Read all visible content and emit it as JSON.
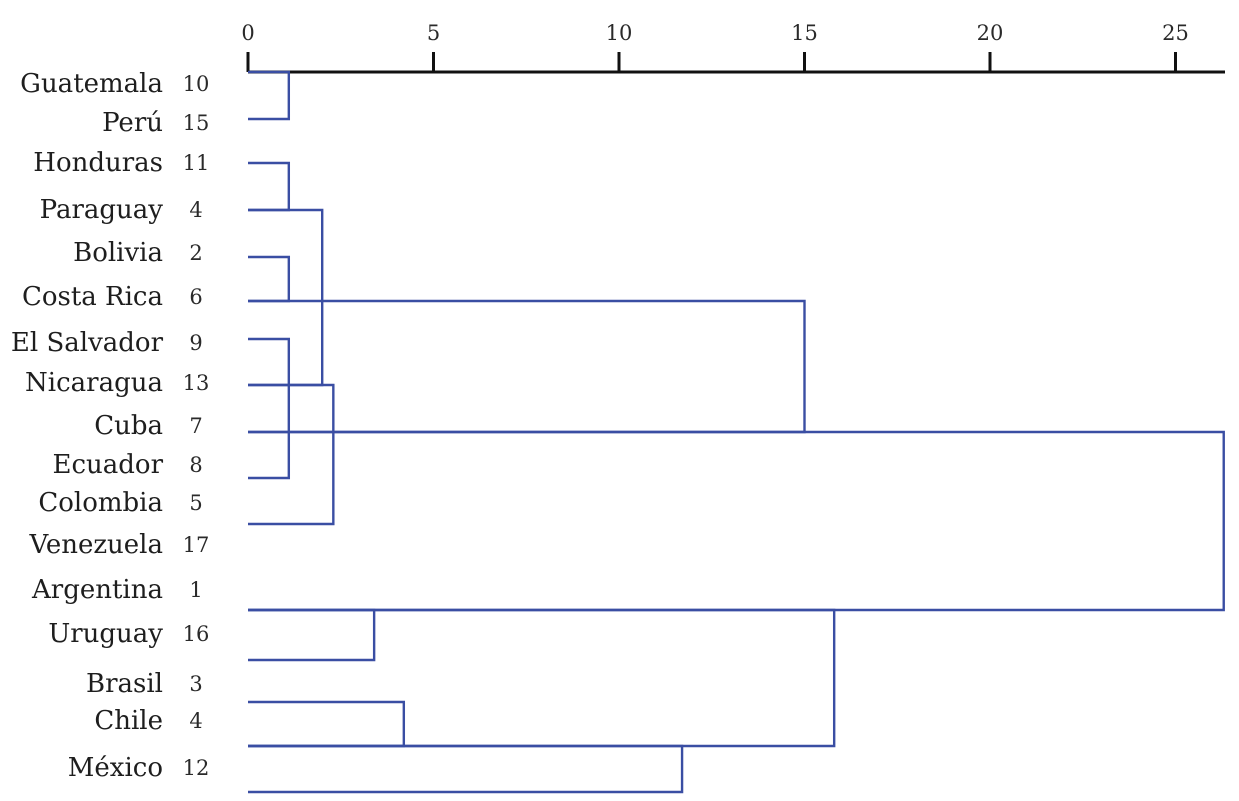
{
  "chart_data": {
    "type": "dendrogram",
    "x_ticks": [
      "0",
      "5",
      "10",
      "15",
      "20",
      "25"
    ],
    "xlim": [
      0,
      26.3
    ],
    "leaves": [
      {
        "name": "Guatemala",
        "id": "10"
      },
      {
        "name": "Perú",
        "id": "15"
      },
      {
        "name": "Honduras",
        "id": "11"
      },
      {
        "name": "Paraguay",
        "id": "4"
      },
      {
        "name": "Bolivia",
        "id": "2"
      },
      {
        "name": "Costa Rica",
        "id": "6"
      },
      {
        "name": "El Salvador",
        "id": "9"
      },
      {
        "name": "Nicaragua",
        "id": "13"
      },
      {
        "name": "Cuba",
        "id": "7"
      },
      {
        "name": "Ecuador",
        "id": "8"
      },
      {
        "name": "Colombia",
        "id": "5"
      },
      {
        "name": "Venezuela",
        "id": "17"
      },
      {
        "name": "Argentina",
        "id": "1"
      },
      {
        "name": "Uruguay",
        "id": "16"
      },
      {
        "name": "Brasil",
        "id": "3"
      },
      {
        "name": "Chile",
        "id": "4"
      },
      {
        "name": "México",
        "id": "12"
      }
    ],
    "merges": [
      {
        "left": "Guatemala",
        "right": "Perú",
        "distance": 1.1
      },
      {
        "left": "Honduras",
        "right": "Paraguay",
        "distance": 1.1
      },
      {
        "left": "Bolivia",
        "right": "Costa Rica",
        "distance": 1.1
      },
      {
        "left": "El Salvador",
        "right": "Ecuador",
        "distance": 1.1
      },
      {
        "left": "Paraguay",
        "right": "Nicaragua",
        "distance": 2.0
      },
      {
        "left": "Nicaragua",
        "right": "Colombia",
        "distance": 2.3
      },
      {
        "left": "Costa Rica",
        "right": "Cuba",
        "distance": 15.0
      },
      {
        "left": "Uruguay",
        "right": "Argentina",
        "distance": 3.4
      },
      {
        "left": "Brasil",
        "right": "Chile",
        "distance": 4.2
      },
      {
        "left": "Chile",
        "right": "México",
        "distance": 11.7
      },
      {
        "left": "Argentina",
        "right": "Chile",
        "distance": 15.8
      },
      {
        "left": "Cuba",
        "right": "Argentina",
        "distance": 26.3
      }
    ]
  }
}
